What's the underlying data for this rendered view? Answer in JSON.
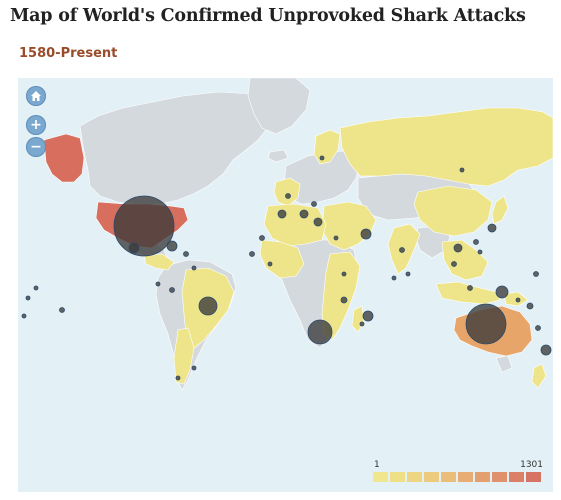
{
  "header": {
    "title": "Map of World's Confirmed Unprovoked Shark Attacks",
    "subtitle": "1580-Present"
  },
  "map": {
    "controls": [
      {
        "name": "home-button",
        "icon": "home-icon"
      },
      {
        "name": "zoom-in-button",
        "icon": "plus-icon",
        "glyph": "+"
      },
      {
        "name": "zoom-out-button",
        "icon": "minus-icon",
        "glyph": "−"
      }
    ],
    "colors": {
      "ocean": "#e3f0f6",
      "no_data": "#d4d9de",
      "low": "#eee58a",
      "medium": "#e8a56a",
      "high": "#d86e5e",
      "bubble": "#3a3a3a"
    },
    "legend": {
      "min_label": "1",
      "max_label": "1301",
      "swatches": [
        "#f0e68e",
        "#efdf87",
        "#edd582",
        "#eccb7e",
        "#eabd79",
        "#e7ad74",
        "#e49f6f",
        "#e0906a",
        "#db7f66",
        "#d67363"
      ]
    }
  }
}
